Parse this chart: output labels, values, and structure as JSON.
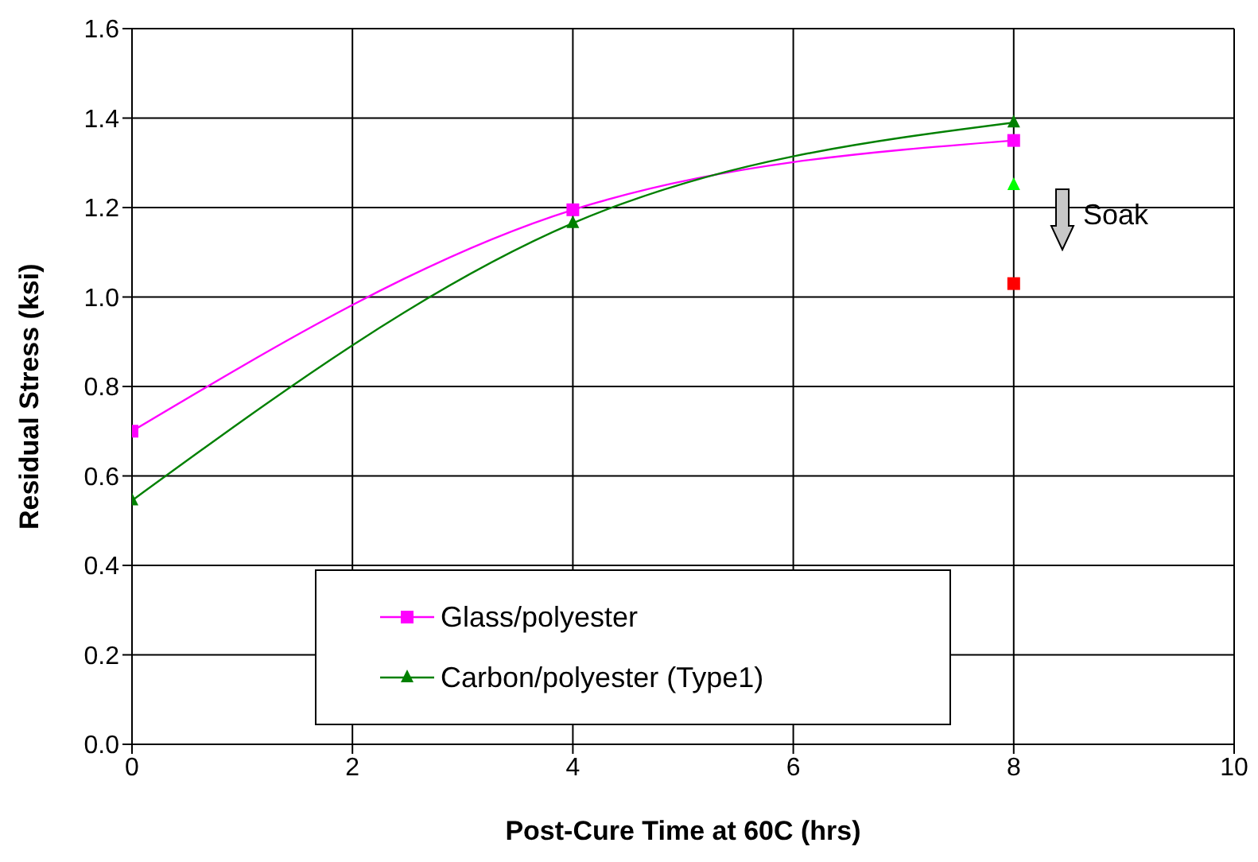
{
  "chart_data": {
    "type": "line",
    "xlabel": "Post-Cure Time at 60C (hrs)",
    "ylabel": "Residual Stress (ksi)",
    "xlim": [
      0,
      10
    ],
    "xticks": [
      0,
      2,
      4,
      6,
      8,
      10
    ],
    "ylim": [
      0,
      1.6
    ],
    "yticks": [
      {
        "value": 0,
        "label": "0.0"
      },
      0.2,
      0.4,
      0.6,
      0.8,
      {
        "value": 1,
        "label": "1.0"
      },
      1.2,
      1.4,
      1.6
    ],
    "grid": true,
    "legend": "bottom left",
    "annotations": [
      "Soak"
    ],
    "series": [
      {
        "name": "Glass/polyester",
        "color": "#ff00ff",
        "marker": "square",
        "x": [
          0,
          4,
          8
        ],
        "values": [
          0.7,
          1.195,
          1.35
        ]
      },
      {
        "name": "Carbon/polyester (Type1)",
        "color": "#008000",
        "marker": "triangle",
        "x": [
          0,
          4,
          8
        ],
        "values": [
          0.545,
          1.165,
          1.39
        ]
      },
      {
        "type": "scatter",
        "color": "#ff0000",
        "marker": "square",
        "x": [
          8
        ],
        "values": [
          1.03
        ]
      },
      {
        "type": "scatter",
        "color": "#00ff00",
        "marker": "triangle",
        "x": [
          8
        ],
        "values": [
          1.25
        ]
      }
    ]
  }
}
